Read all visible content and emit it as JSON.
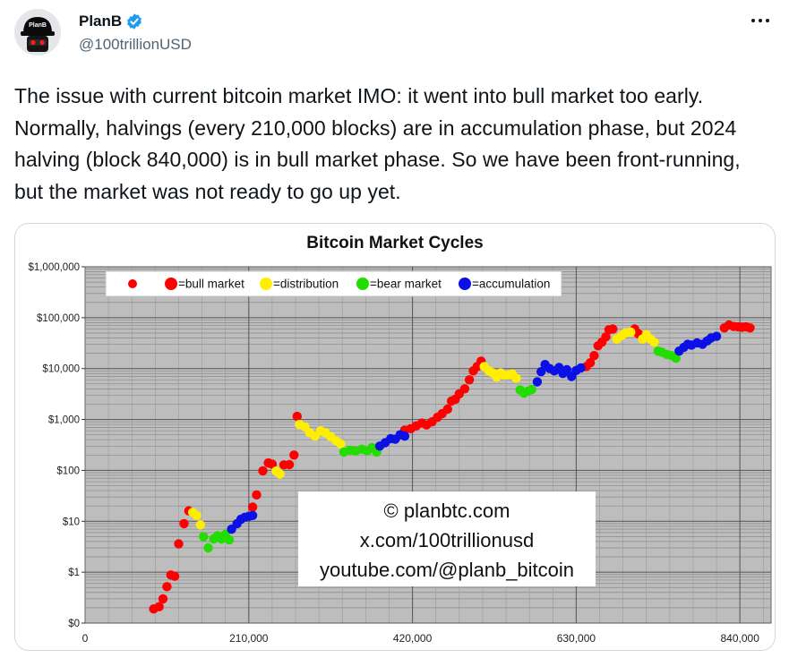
{
  "author": {
    "display_name": "PlanB",
    "handle": "@100trillionUSD",
    "verified_icon": "verified-badge-icon",
    "avatar_text": "PlanB"
  },
  "more_icon": "more-horizontal-icon",
  "tweet": {
    "text": "The issue with current bitcoin market IMO: it went into bull market too early. Normally, halvings (every 210,000 blocks) are in accumulation phase, but 2024 halving (block 840,000) is in bull market phase. So we have been front-running, but the market was not ready to go up yet."
  },
  "colors": {
    "bull": "#ff0000",
    "distribution": "#ffee00",
    "bear": "#22dd00",
    "accumulation": "#0a10e6",
    "plot_bg": "#bdbdbd",
    "link": "#1d9bf0"
  },
  "chart_data": {
    "type": "scatter",
    "title": "Bitcoin Market Cycles",
    "xlabel": "",
    "ylabel": "",
    "log_y": true,
    "grid": true,
    "legend_position": "top-left",
    "xlim": [
      0,
      880000
    ],
    "ylim": [
      0.1,
      1000000
    ],
    "x_ticks": [
      0,
      210000,
      420000,
      630000,
      840000
    ],
    "x_tick_labels": [
      "0",
      "210,000",
      "420,000",
      "630,000",
      "840,000"
    ],
    "y_ticks": [
      0.1,
      1,
      10,
      100,
      1000,
      10000,
      100000,
      1000000
    ],
    "y_tick_labels": [
      "$0",
      "$1",
      "$10",
      "$100",
      "$1,000",
      "$10,000",
      "$100,000",
      "$1,000,000"
    ],
    "legend": [
      "=bull market",
      "=distribution",
      "=bear market",
      "=accumulation"
    ],
    "watermark": [
      "© planbtc.com",
      "x.com/100trillionusd",
      "youtube.com/@planb_bitcoin"
    ],
    "series": [
      {
        "name": "bull market",
        "color": "#ff0000",
        "points": [
          [
            88000,
            0.19
          ],
          [
            95000,
            0.21
          ],
          [
            100000,
            0.3
          ],
          [
            105000,
            0.52
          ],
          [
            110000,
            0.88
          ],
          [
            115000,
            0.83
          ],
          [
            120000,
            3.6
          ],
          [
            127000,
            9
          ],
          [
            133000,
            16
          ],
          [
            215000,
            19
          ],
          [
            220000,
            33
          ],
          [
            228000,
            98
          ],
          [
            235000,
            140
          ],
          [
            240000,
            133
          ],
          [
            255000,
            128
          ],
          [
            262000,
            130
          ],
          [
            268000,
            200
          ],
          [
            272000,
            1150
          ],
          [
            410000,
            620
          ],
          [
            418000,
            660
          ],
          [
            425000,
            750
          ],
          [
            432000,
            850
          ],
          [
            438000,
            780
          ],
          [
            445000,
            900
          ],
          [
            452000,
            1100
          ],
          [
            458000,
            1300
          ],
          [
            465000,
            1600
          ],
          [
            470000,
            2300
          ],
          [
            475000,
            2500
          ],
          [
            480000,
            3200
          ],
          [
            487000,
            4000
          ],
          [
            493000,
            6000
          ],
          [
            498000,
            9000
          ],
          [
            503000,
            11000
          ],
          [
            508000,
            14000
          ],
          [
            643000,
            11000
          ],
          [
            648000,
            13000
          ],
          [
            653000,
            18000
          ],
          [
            658000,
            28000
          ],
          [
            663000,
            33000
          ],
          [
            668000,
            42000
          ],
          [
            672000,
            58000
          ],
          [
            677000,
            60000
          ],
          [
            705000,
            60000
          ],
          [
            710000,
            48000
          ],
          [
            820000,
            63000
          ],
          [
            826000,
            72000
          ],
          [
            832000,
            67000
          ],
          [
            838000,
            66000
          ],
          [
            843000,
            65000
          ],
          [
            848000,
            66000
          ],
          [
            853000,
            63000
          ]
        ]
      },
      {
        "name": "distribution",
        "color": "#ffee00",
        "points": [
          [
            138000,
            15
          ],
          [
            143000,
            13
          ],
          [
            148000,
            8.5
          ],
          [
            245000,
            97
          ],
          [
            250000,
            85
          ],
          [
            275000,
            800
          ],
          [
            282000,
            720
          ],
          [
            288000,
            550
          ],
          [
            295000,
            470
          ],
          [
            302000,
            600
          ],
          [
            308000,
            550
          ],
          [
            315000,
            460
          ],
          [
            322000,
            380
          ],
          [
            328000,
            330
          ],
          [
            512000,
            11000
          ],
          [
            518000,
            9000
          ],
          [
            523000,
            8200
          ],
          [
            528000,
            6800
          ],
          [
            533000,
            8200
          ],
          [
            538000,
            7400
          ],
          [
            543000,
            7500
          ],
          [
            548000,
            7800
          ],
          [
            553000,
            6500
          ],
          [
            682000,
            38000
          ],
          [
            688000,
            44000
          ],
          [
            693000,
            50000
          ],
          [
            700000,
            52000
          ],
          [
            715000,
            38000
          ],
          [
            720000,
            46000
          ],
          [
            725000,
            38000
          ],
          [
            730000,
            33000
          ]
        ]
      },
      {
        "name": "bear market",
        "color": "#22dd00",
        "points": [
          [
            152000,
            5
          ],
          [
            158000,
            3
          ],
          [
            165000,
            4.5
          ],
          [
            170000,
            5.2
          ],
          [
            175000,
            4.5
          ],
          [
            180000,
            5.5
          ],
          [
            185000,
            4.3
          ],
          [
            332000,
            230
          ],
          [
            340000,
            250
          ],
          [
            347000,
            240
          ],
          [
            355000,
            260
          ],
          [
            362000,
            240
          ],
          [
            368000,
            280
          ],
          [
            374000,
            230
          ],
          [
            558000,
            3800
          ],
          [
            563000,
            3300
          ],
          [
            568000,
            3600
          ],
          [
            573000,
            3900
          ],
          [
            735000,
            22000
          ],
          [
            740000,
            21000
          ],
          [
            746000,
            19000
          ],
          [
            752000,
            18000
          ],
          [
            758000,
            16000
          ]
        ]
      },
      {
        "name": "accumulation",
        "color": "#0a10e6",
        "points": [
          [
            188000,
            7
          ],
          [
            195000,
            9
          ],
          [
            200000,
            11
          ],
          [
            205000,
            12
          ],
          [
            210000,
            12.5
          ],
          [
            215000,
            13
          ],
          [
            378000,
            300
          ],
          [
            385000,
            350
          ],
          [
            392000,
            420
          ],
          [
            398000,
            410
          ],
          [
            404000,
            500
          ],
          [
            410000,
            470
          ],
          [
            580000,
            5500
          ],
          [
            585000,
            8700
          ],
          [
            590000,
            12000
          ],
          [
            596000,
            10000
          ],
          [
            602000,
            9000
          ],
          [
            608000,
            10500
          ],
          [
            613000,
            8000
          ],
          [
            618000,
            9500
          ],
          [
            624000,
            7000
          ],
          [
            630000,
            9200
          ],
          [
            636000,
            10300
          ],
          [
            762000,
            22000
          ],
          [
            768000,
            26000
          ],
          [
            773000,
            30000
          ],
          [
            778000,
            29000
          ],
          [
            785000,
            32000
          ],
          [
            792000,
            30000
          ],
          [
            798000,
            35000
          ],
          [
            803000,
            40000
          ],
          [
            810000,
            43000
          ]
        ]
      }
    ]
  }
}
